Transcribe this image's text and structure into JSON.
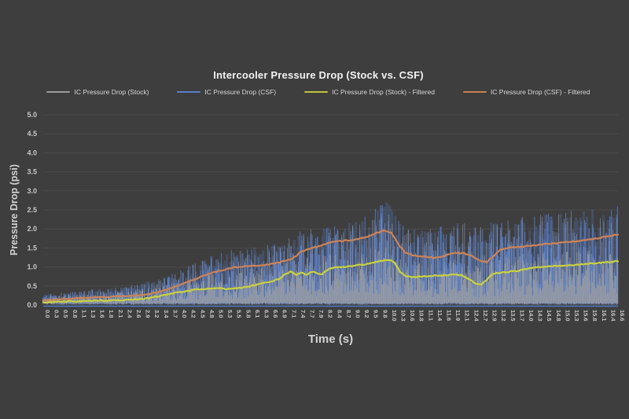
{
  "title": "Intercooler Pressure Drop (Stock vs. CSF)",
  "axes": {
    "x_label": "Time (s)",
    "y_label": "Pressure Drop (psi)",
    "y_ticks": [
      "0.0",
      "0.5",
      "1.0",
      "1.5",
      "2.0",
      "2.5",
      "3.0",
      "3.5",
      "4.0",
      "4.5",
      "5.0"
    ],
    "x_ticks": [
      "0.0",
      "0.3",
      "0.5",
      "0.8",
      "1.1",
      "1.3",
      "1.6",
      "1.8",
      "2.1",
      "2.4",
      "2.6",
      "2.9",
      "3.2",
      "3.4",
      "3.7",
      "4.0",
      "4.2",
      "4.5",
      "4.8",
      "5.0",
      "5.3",
      "5.5",
      "5.8",
      "6.1",
      "6.3",
      "6.6",
      "6.9",
      "7.1",
      "7.4",
      "7.7",
      "7.9",
      "8.2",
      "8.4",
      "8.7",
      "9.0",
      "9.2",
      "9.5",
      "9.8",
      "10.0",
      "10.3",
      "10.6",
      "10.8",
      "11.1",
      "11.4",
      "11.6",
      "11.9",
      "12.1",
      "12.4",
      "12.7",
      "12.9",
      "13.2",
      "13.5",
      "13.7",
      "14.0",
      "14.3",
      "14.5",
      "14.8",
      "15.0",
      "15.3",
      "15.6",
      "15.8",
      "16.1",
      "16.4",
      "16.6"
    ]
  },
  "legend": [
    {
      "label": "IC Pressure Drop (Stock)",
      "color": "#9a9a9a"
    },
    {
      "label": "IC Pressure Drop (CSF)",
      "color": "#5b7fc4"
    },
    {
      "label": "IC Pressure Drop (Stock) - Filtered",
      "color": "#bfc23a"
    },
    {
      "label": "IC Pressure Drop (CSF) - Filtered",
      "color": "#c5804f"
    }
  ],
  "colors": {
    "background": "#3e3e3e",
    "gridline": "#4b4b4b",
    "axis_line_blue": "#4f74bf",
    "tick_text": "#c6c6c6",
    "axis_title_text": "#d2d2d2",
    "raw_stock": "#a0a0a0",
    "raw_csf": "#5578bd",
    "raw_csf_light": "#9fb3dd",
    "filtered_stock": "#c9d13f",
    "filtered_csf": "#cd8356"
  },
  "chart_data": {
    "type": "line",
    "title": "Intercooler Pressure Drop (Stock vs. CSF)",
    "xlabel": "Time (s)",
    "ylabel": "Pressure Drop (psi)",
    "xlim": [
      0,
      16.6
    ],
    "ylim": [
      0,
      5
    ],
    "grid": true,
    "legend_position": "top",
    "series": [
      {
        "name": "IC Pressure Drop (Stock)",
        "style": "raw-noise",
        "color": "#a0a0a0",
        "note": "dense noisy trace oscillating between ~0 and envelope",
        "envelope_max": [
          [
            0,
            0.22
          ],
          [
            0.5,
            0.25
          ],
          [
            1,
            0.28
          ],
          [
            1.5,
            0.3
          ],
          [
            2,
            0.34
          ],
          [
            2.5,
            0.38
          ],
          [
            3,
            0.45
          ],
          [
            3.5,
            0.55
          ],
          [
            4,
            0.65
          ],
          [
            4.5,
            0.8
          ],
          [
            5,
            0.9
          ],
          [
            5.5,
            0.95
          ],
          [
            6,
            1.0
          ],
          [
            6.5,
            1.05
          ],
          [
            7,
            1.15
          ],
          [
            7.5,
            1.25
          ],
          [
            8,
            1.3
          ],
          [
            8.5,
            1.35
          ],
          [
            9,
            1.4
          ],
          [
            9.5,
            1.5
          ],
          [
            9.9,
            1.55
          ],
          [
            10.3,
            1.3
          ],
          [
            10.7,
            1.15
          ],
          [
            11,
            1.1
          ],
          [
            11.5,
            1.15
          ],
          [
            12,
            1.2
          ],
          [
            12.5,
            1.05
          ],
          [
            13,
            1.2
          ],
          [
            13.5,
            1.3
          ],
          [
            14,
            1.35
          ],
          [
            14.5,
            1.4
          ],
          [
            15,
            1.42
          ],
          [
            15.5,
            1.45
          ],
          [
            16,
            1.5
          ],
          [
            16.6,
            1.55
          ]
        ]
      },
      {
        "name": "IC Pressure Drop (CSF)",
        "style": "raw-noise",
        "color": "#5578bd",
        "note": "dense noisy trace oscillating between ~0 and envelope",
        "envelope_max": [
          [
            0,
            0.28
          ],
          [
            0.5,
            0.32
          ],
          [
            1,
            0.36
          ],
          [
            1.5,
            0.42
          ],
          [
            2,
            0.46
          ],
          [
            2.5,
            0.52
          ],
          [
            3,
            0.62
          ],
          [
            3.5,
            0.75
          ],
          [
            4,
            0.95
          ],
          [
            4.5,
            1.15
          ],
          [
            5,
            1.35
          ],
          [
            5.5,
            1.45
          ],
          [
            6,
            1.5
          ],
          [
            6.5,
            1.6
          ],
          [
            7,
            1.75
          ],
          [
            7.5,
            2.0
          ],
          [
            8,
            2.0
          ],
          [
            8.5,
            2.1
          ],
          [
            9,
            2.2
          ],
          [
            9.5,
            2.5
          ],
          [
            9.9,
            2.75
          ],
          [
            10.2,
            2.4
          ],
          [
            10.5,
            2.05
          ],
          [
            11,
            2.0
          ],
          [
            11.5,
            2.1
          ],
          [
            12,
            2.2
          ],
          [
            12.5,
            2.05
          ],
          [
            13,
            2.2
          ],
          [
            13.5,
            2.3
          ],
          [
            14,
            2.35
          ],
          [
            14.5,
            2.4
          ],
          [
            15,
            2.45
          ],
          [
            15.5,
            2.5
          ],
          [
            16,
            2.55
          ],
          [
            16.6,
            2.6
          ]
        ]
      },
      {
        "name": "IC Pressure Drop (Stock) - Filtered",
        "style": "line",
        "color": "#c9d13f",
        "points": [
          [
            0,
            0.07
          ],
          [
            0.5,
            0.09
          ],
          [
            1,
            0.1
          ],
          [
            1.5,
            0.11
          ],
          [
            2,
            0.12
          ],
          [
            2.5,
            0.14
          ],
          [
            2.9,
            0.16
          ],
          [
            3.3,
            0.22
          ],
          [
            3.7,
            0.3
          ],
          [
            4.1,
            0.36
          ],
          [
            4.4,
            0.4
          ],
          [
            4.7,
            0.43
          ],
          [
            5.0,
            0.44
          ],
          [
            5.3,
            0.42
          ],
          [
            5.6,
            0.44
          ],
          [
            5.9,
            0.48
          ],
          [
            6.2,
            0.55
          ],
          [
            6.5,
            0.6
          ],
          [
            6.8,
            0.68
          ],
          [
            7.0,
            0.82
          ],
          [
            7.15,
            0.88
          ],
          [
            7.3,
            0.78
          ],
          [
            7.45,
            0.86
          ],
          [
            7.6,
            0.8
          ],
          [
            7.75,
            0.88
          ],
          [
            7.9,
            0.84
          ],
          [
            8.05,
            0.8
          ],
          [
            8.2,
            0.92
          ],
          [
            8.35,
            0.98
          ],
          [
            8.6,
            1.0
          ],
          [
            8.9,
            1.02
          ],
          [
            9.2,
            1.06
          ],
          [
            9.5,
            1.1
          ],
          [
            9.8,
            1.17
          ],
          [
            10.0,
            1.19
          ],
          [
            10.15,
            1.1
          ],
          [
            10.3,
            0.88
          ],
          [
            10.45,
            0.76
          ],
          [
            10.7,
            0.74
          ],
          [
            11.0,
            0.76
          ],
          [
            11.3,
            0.77
          ],
          [
            11.6,
            0.78
          ],
          [
            11.9,
            0.8
          ],
          [
            12.1,
            0.78
          ],
          [
            12.3,
            0.68
          ],
          [
            12.5,
            0.56
          ],
          [
            12.65,
            0.54
          ],
          [
            12.8,
            0.66
          ],
          [
            12.95,
            0.8
          ],
          [
            13.1,
            0.84
          ],
          [
            13.4,
            0.87
          ],
          [
            13.7,
            0.9
          ],
          [
            14.0,
            0.96
          ],
          [
            14.3,
            0.99
          ],
          [
            14.6,
            1.01
          ],
          [
            15.0,
            1.04
          ],
          [
            15.4,
            1.06
          ],
          [
            15.8,
            1.09
          ],
          [
            16.1,
            1.11
          ],
          [
            16.4,
            1.13
          ],
          [
            16.6,
            1.15
          ]
        ]
      },
      {
        "name": "IC Pressure Drop (CSF) - Filtered",
        "style": "line",
        "color": "#cd8356",
        "points": [
          [
            0,
            0.12
          ],
          [
            0.5,
            0.15
          ],
          [
            1,
            0.18
          ],
          [
            1.5,
            0.2
          ],
          [
            2,
            0.22
          ],
          [
            2.5,
            0.24
          ],
          [
            2.9,
            0.27
          ],
          [
            3.3,
            0.33
          ],
          [
            3.7,
            0.44
          ],
          [
            4.1,
            0.58
          ],
          [
            4.5,
            0.72
          ],
          [
            4.8,
            0.82
          ],
          [
            5.1,
            0.9
          ],
          [
            5.4,
            0.97
          ],
          [
            5.7,
            1.01
          ],
          [
            6.0,
            1.02
          ],
          [
            6.3,
            1.03
          ],
          [
            6.6,
            1.08
          ],
          [
            6.9,
            1.14
          ],
          [
            7.2,
            1.22
          ],
          [
            7.45,
            1.4
          ],
          [
            7.8,
            1.5
          ],
          [
            8.3,
            1.65
          ],
          [
            8.6,
            1.68
          ],
          [
            9.0,
            1.72
          ],
          [
            9.3,
            1.78
          ],
          [
            9.6,
            1.88
          ],
          [
            9.85,
            1.96
          ],
          [
            10.05,
            1.9
          ],
          [
            10.25,
            1.6
          ],
          [
            10.45,
            1.38
          ],
          [
            10.7,
            1.3
          ],
          [
            11.0,
            1.27
          ],
          [
            11.3,
            1.24
          ],
          [
            11.6,
            1.3
          ],
          [
            11.9,
            1.37
          ],
          [
            12.15,
            1.36
          ],
          [
            12.4,
            1.28
          ],
          [
            12.65,
            1.16
          ],
          [
            12.8,
            1.13
          ],
          [
            13.0,
            1.28
          ],
          [
            13.2,
            1.45
          ],
          [
            13.45,
            1.51
          ],
          [
            13.8,
            1.53
          ],
          [
            14.2,
            1.57
          ],
          [
            14.6,
            1.61
          ],
          [
            15.0,
            1.64
          ],
          [
            15.4,
            1.68
          ],
          [
            15.8,
            1.72
          ],
          [
            16.1,
            1.77
          ],
          [
            16.4,
            1.82
          ],
          [
            16.6,
            1.86
          ]
        ]
      }
    ]
  }
}
